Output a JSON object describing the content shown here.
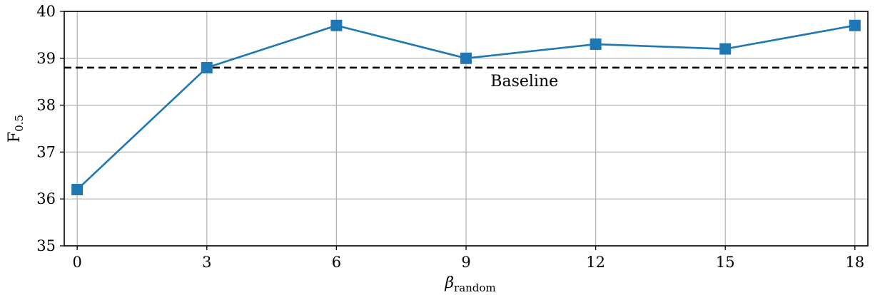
{
  "chart_data": {
    "type": "line",
    "title": "",
    "xlabel": {
      "base": "β",
      "sub": "random"
    },
    "ylabel": {
      "base": "F",
      "sub": "0.5"
    },
    "x": [
      0,
      3,
      6,
      9,
      12,
      15,
      18
    ],
    "series": [
      {
        "name": "",
        "values": [
          36.2,
          38.8,
          39.7,
          39.0,
          39.3,
          39.2,
          39.7
        ],
        "color": "#1f77b4",
        "marker": "square"
      }
    ],
    "reference_lines": [
      {
        "label": "Baseline",
        "y": 38.8,
        "style": "dashed",
        "color": "#000000"
      }
    ],
    "xlim": [
      -0.3,
      18.3
    ],
    "ylim": [
      35,
      40
    ],
    "xticks": [
      0,
      3,
      6,
      9,
      12,
      15,
      18
    ],
    "yticks": [
      35,
      36,
      37,
      38,
      39,
      40
    ],
    "grid": true,
    "grid_color": "#b0b0b0",
    "legend": "none"
  }
}
